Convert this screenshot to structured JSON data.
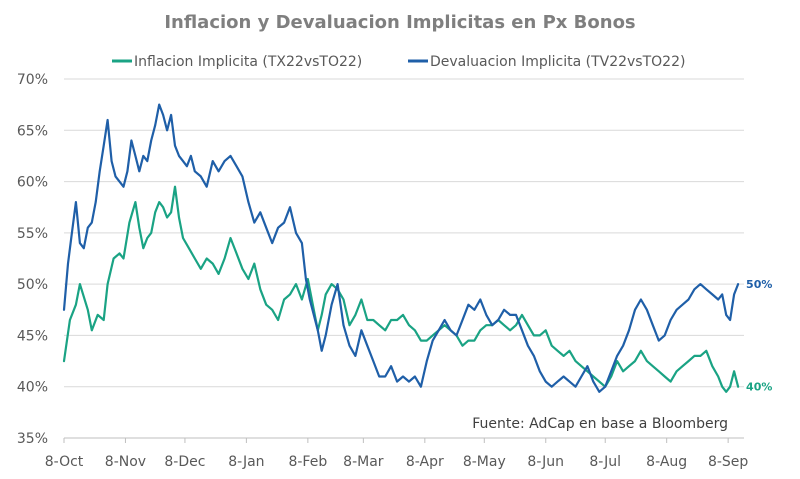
{
  "chart_data": {
    "type": "line",
    "title": "Inflacion y Devaluacion Implicitas en Px Bonos",
    "xlabel": "",
    "ylabel": "",
    "ylim": [
      35,
      70
    ],
    "yticks": [
      "35%",
      "40%",
      "45%",
      "50%",
      "55%",
      "60%",
      "65%",
      "70%"
    ],
    "ytick_values": [
      35,
      40,
      45,
      50,
      55,
      60,
      65,
      70
    ],
    "xticks": [
      "8-Oct",
      "8-Nov",
      "8-Dec",
      "8-Jan",
      "8-Feb",
      "8-Mar",
      "8-Apr",
      "8-May",
      "8-Jun",
      "8-Jul",
      "8-Aug",
      "8-Sep"
    ],
    "xtick_days": [
      0,
      31,
      61,
      92,
      123,
      151,
      182,
      212,
      243,
      273,
      304,
      335
    ],
    "xlim_days": [
      0,
      343
    ],
    "grid": "horizontal",
    "legend_position": "top",
    "source_note": "Fuente: AdCap en base a Bloomberg",
    "series": [
      {
        "name": "Inflacion Implicita (TX22vsTO22)",
        "color": "#1aa384",
        "end_label": "40%",
        "days": [
          0,
          3,
          6,
          8,
          12,
          14,
          17,
          20,
          22,
          25,
          28,
          30,
          33,
          36,
          38,
          40,
          42,
          44,
          46,
          48,
          50,
          52,
          54,
          56,
          58,
          60,
          63,
          66,
          69,
          72,
          75,
          78,
          81,
          84,
          87,
          90,
          93,
          96,
          99,
          102,
          105,
          108,
          111,
          114,
          117,
          120,
          123,
          126,
          128,
          130,
          132,
          135,
          138,
          141,
          144,
          147,
          150,
          153,
          156,
          159,
          162,
          165,
          168,
          171,
          174,
          177,
          180,
          183,
          186,
          189,
          192,
          195,
          198,
          201,
          204,
          207,
          210,
          213,
          216,
          219,
          222,
          225,
          228,
          231,
          234,
          237,
          240,
          243,
          246,
          249,
          252,
          255,
          258,
          261,
          264,
          267,
          270,
          273,
          276,
          279,
          282,
          285,
          288,
          291,
          294,
          297,
          300,
          303,
          306,
          309,
          312,
          315,
          318,
          321,
          324,
          327,
          330,
          332,
          334,
          336,
          338,
          340
        ],
        "values": [
          42.5,
          46.5,
          48.0,
          50.0,
          47.5,
          45.5,
          47.0,
          46.5,
          50.0,
          52.5,
          53.0,
          52.5,
          56.0,
          58.0,
          55.5,
          53.5,
          54.5,
          55.0,
          57.0,
          58.0,
          57.5,
          56.5,
          57.0,
          59.5,
          56.5,
          54.5,
          53.5,
          52.5,
          51.5,
          52.5,
          52.0,
          51.0,
          52.5,
          54.5,
          53.0,
          51.5,
          50.5,
          52.0,
          49.5,
          48.0,
          47.5,
          46.5,
          48.5,
          49.0,
          50.0,
          48.5,
          50.5,
          47.5,
          45.5,
          47.0,
          49.0,
          50.0,
          49.5,
          48.5,
          46.0,
          47.0,
          48.5,
          46.5,
          46.5,
          46.0,
          45.5,
          46.5,
          46.5,
          47.0,
          46.0,
          45.5,
          44.5,
          44.5,
          45.0,
          45.5,
          46.0,
          45.5,
          45.0,
          44.0,
          44.5,
          44.5,
          45.5,
          46.0,
          46.0,
          46.5,
          46.0,
          45.5,
          46.0,
          47.0,
          46.0,
          45.0,
          45.0,
          45.5,
          44.0,
          43.5,
          43.0,
          43.5,
          42.5,
          42.0,
          41.5,
          41.0,
          40.5,
          40.0,
          41.0,
          42.5,
          41.5,
          42.0,
          42.5,
          43.5,
          42.5,
          42.0,
          41.5,
          41.0,
          40.5,
          41.5,
          42.0,
          42.5,
          43.0,
          43.0,
          43.5,
          42.0,
          41.0,
          40.0,
          39.5,
          40.0,
          41.5,
          40.0
        ]
      },
      {
        "name": "Devaluacion Implicita (TV22vsTO22)",
        "color": "#1f5fa8",
        "end_label": "50%",
        "days": [
          0,
          2,
          4,
          6,
          8,
          10,
          12,
          14,
          16,
          18,
          20,
          22,
          24,
          26,
          28,
          30,
          32,
          34,
          36,
          38,
          40,
          42,
          44,
          46,
          48,
          50,
          52,
          54,
          56,
          58,
          60,
          62,
          64,
          66,
          69,
          72,
          75,
          78,
          81,
          84,
          87,
          90,
          93,
          96,
          99,
          102,
          105,
          108,
          111,
          114,
          117,
          120,
          122,
          124,
          126,
          128,
          130,
          132,
          135,
          138,
          141,
          144,
          147,
          150,
          153,
          156,
          159,
          162,
          165,
          168,
          171,
          174,
          177,
          180,
          183,
          186,
          189,
          192,
          195,
          198,
          201,
          204,
          207,
          210,
          213,
          216,
          219,
          222,
          225,
          228,
          231,
          234,
          237,
          240,
          243,
          246,
          249,
          252,
          255,
          258,
          261,
          264,
          267,
          270,
          273,
          276,
          279,
          282,
          285,
          288,
          291,
          294,
          297,
          300,
          303,
          306,
          309,
          312,
          315,
          318,
          321,
          324,
          327,
          330,
          332,
          334,
          336,
          338,
          340
        ],
        "values": [
          47.5,
          52.0,
          55.0,
          58.0,
          54.0,
          53.5,
          55.5,
          56.0,
          58.0,
          61.0,
          63.5,
          66.0,
          62.0,
          60.5,
          60.0,
          59.5,
          61.0,
          64.0,
          62.5,
          61.0,
          62.5,
          62.0,
          64.0,
          65.5,
          67.5,
          66.5,
          65.0,
          66.5,
          63.5,
          62.5,
          62.0,
          61.5,
          62.5,
          61.0,
          60.5,
          59.5,
          62.0,
          61.0,
          62.0,
          62.5,
          61.5,
          60.5,
          58.0,
          56.0,
          57.0,
          55.5,
          54.0,
          55.5,
          56.0,
          57.5,
          55.0,
          54.0,
          50.5,
          48.5,
          47.0,
          45.5,
          43.5,
          45.0,
          48.0,
          50.0,
          46.0,
          44.0,
          43.0,
          45.5,
          44.0,
          42.5,
          41.0,
          41.0,
          42.0,
          40.5,
          41.0,
          40.5,
          41.0,
          40.0,
          42.5,
          44.5,
          45.5,
          46.5,
          45.5,
          45.0,
          46.5,
          48.0,
          47.5,
          48.5,
          47.0,
          46.0,
          46.5,
          47.5,
          47.0,
          47.0,
          45.5,
          44.0,
          43.0,
          41.5,
          40.5,
          40.0,
          40.5,
          41.0,
          40.5,
          40.0,
          41.0,
          42.0,
          40.5,
          39.5,
          40.0,
          41.5,
          43.0,
          44.0,
          45.5,
          47.5,
          48.5,
          47.5,
          46.0,
          44.5,
          45.0,
          46.5,
          47.5,
          48.0,
          48.5,
          49.5,
          50.0,
          49.5,
          49.0,
          48.5,
          49.0,
          47.0,
          46.5,
          49.0,
          50.0
        ]
      }
    ]
  }
}
